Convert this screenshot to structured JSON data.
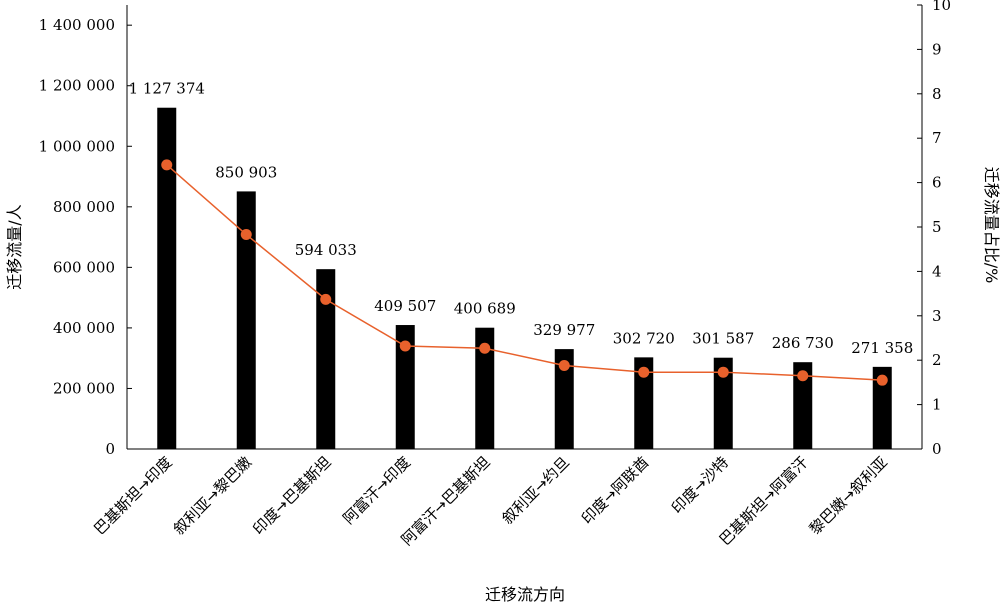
{
  "chart_data": {
    "type": "bar",
    "categories": [
      "巴基斯坦→印度",
      "叙利亚→黎巴嫩",
      "印度→巴基斯坦",
      "阿富汗→印度",
      "阿富汗→巴基斯坦",
      "叙利亚→约旦",
      "印度→阿联酋",
      "印度→沙特",
      "巴基斯坦→阿富汗",
      "黎巴嫩→叙利亚"
    ],
    "series": [
      {
        "type": "bar",
        "axis": "left",
        "values": [
          1127374,
          850903,
          594033,
          409507,
          400689,
          329977,
          302720,
          301587,
          286730,
          271358
        ],
        "labels": [
          "1 127 374",
          "850 903",
          "594 033",
          "409 507",
          "400 689",
          "329 977",
          "302 720",
          "301 587",
          "286 730",
          "271 358"
        ],
        "color": "#000000"
      },
      {
        "type": "line",
        "axis": "right",
        "values": [
          6.4,
          4.83,
          3.37,
          2.32,
          2.27,
          1.88,
          1.73,
          1.73,
          1.65,
          1.55
        ],
        "color": "#E8612C"
      }
    ],
    "xlabel": "迁移流方向",
    "ylabel": "迁移流量/人",
    "y2label": "迁移流量占比/%",
    "ylim": [
      0,
      1466667
    ],
    "y2lim": [
      0,
      10
    ],
    "yticks": [
      0,
      200000,
      400000,
      600000,
      800000,
      1000000,
      1200000,
      1400000
    ],
    "ytick_labels": [
      "0",
      "200 000",
      "400 000",
      "600 000",
      "800 000",
      "1 000 000",
      "1 200 000",
      "1 400 000"
    ],
    "y2ticks": [
      0,
      1,
      2,
      3,
      4,
      5,
      6,
      7,
      8,
      9,
      10
    ],
    "y2tick_labels": [
      "0",
      "1",
      "2",
      "3",
      "4",
      "5",
      "6",
      "7",
      "8",
      "9",
      "10"
    ],
    "grid": false,
    "legend": "none"
  }
}
